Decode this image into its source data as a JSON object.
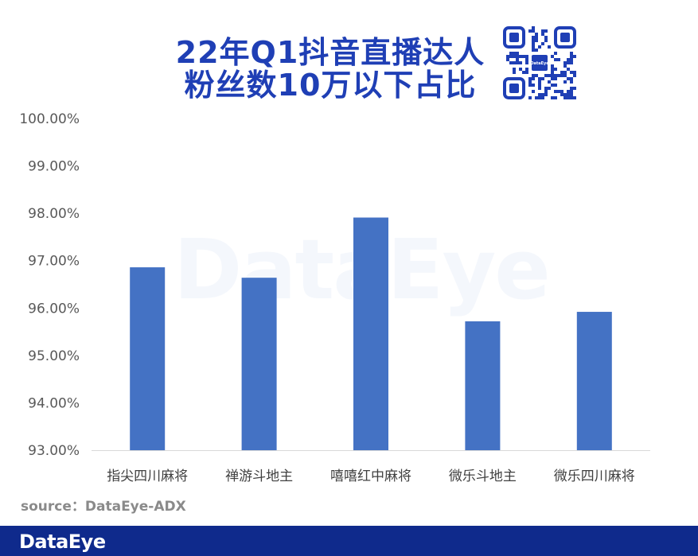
{
  "header": {
    "title_line1": "22年Q1抖音直播达人",
    "title_line2": "粉丝数10万以下占比"
  },
  "watermark": "DataEye",
  "qr_code": {
    "center_label": "DataEye"
  },
  "source": "source：DataEye-ADX",
  "footer": {
    "logo": "DataEye"
  },
  "colors": {
    "bar": "#4472c4",
    "title": "#1f3fb5",
    "footer": "#0f2a8c"
  },
  "chart_data": {
    "type": "bar",
    "title": "22年Q1抖音直播达人粉丝数10万以下占比",
    "categories": [
      "指尖四川麻将",
      "禅游斗地主",
      "嘻嘻红中麻将",
      "微乐斗地主",
      "微乐四川麻将"
    ],
    "values": [
      96.86,
      96.64,
      97.91,
      95.72,
      95.92
    ],
    "unit": "%",
    "ylim": [
      93,
      100
    ],
    "yticks": [
      "93.00%",
      "94.00%",
      "95.00%",
      "96.00%",
      "97.00%",
      "98.00%",
      "99.00%",
      "100.00%"
    ],
    "xlabel": "",
    "ylabel": "",
    "grid": false,
    "legend": "none"
  }
}
